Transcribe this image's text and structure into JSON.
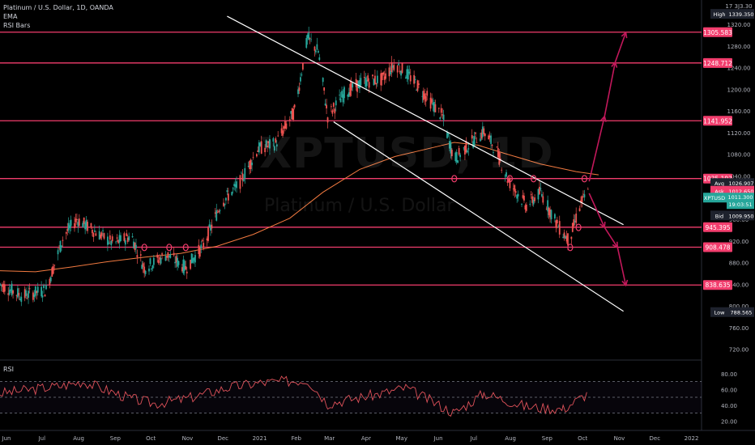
{
  "header": {
    "title": "Platinum / U.S. Dollar, 1D, OANDA",
    "indicators": [
      "EMA",
      "RSI Bars"
    ]
  },
  "watermark": {
    "symbol": "XPTUSD, 1D",
    "name": "Platinum / U.S. Dollar"
  },
  "rsi_pane": {
    "title": "RSI",
    "ticks": [
      "80.00",
      "60.00",
      "40.00",
      "20.00"
    ],
    "levels": [
      70,
      50,
      30
    ]
  },
  "price_axis": {
    "ticks": [
      "1360.00",
      "1320.00",
      "1280.00",
      "1240.00",
      "1200.00",
      "1160.00",
      "1120.00",
      "1080.00",
      "1040.00",
      "1000.00",
      "960.00",
      "920.00",
      "880.00",
      "840.00",
      "800.00",
      "760.00",
      "720.00"
    ],
    "top_label": "17 3J3.30"
  },
  "badges": {
    "high": {
      "label": "High",
      "value": "1339.350"
    },
    "low": {
      "label": "Low",
      "value": "788.565"
    },
    "avg": {
      "label": "Avg",
      "value": "1026.907"
    },
    "ask": {
      "label": "Ask",
      "value": "1012.650"
    },
    "symbol": {
      "label": "XPTUSD",
      "value": "1011.300",
      "countdown": "19:03:51"
    },
    "bid": {
      "label": "Bid",
      "value": "1009.950"
    }
  },
  "time_axis": [
    "Jun",
    "Jul",
    "Aug",
    "Sep",
    "Oct",
    "Nov",
    "Dec",
    "2021",
    "Feb",
    "Mar",
    "Apr",
    "May",
    "Jun",
    "Jul",
    "Aug",
    "Sep",
    "Oct",
    "Nov",
    "Dec",
    "2022"
  ],
  "colors": {
    "background": "#000000",
    "level": "#f23d6d",
    "up": "#26a69a",
    "down": "#ef5350",
    "ema": "#f27a40",
    "channel": "#ffffff",
    "arrow": "#c2185b",
    "rsi": "#e0525a"
  },
  "chart_data": {
    "type": "candlestick",
    "symbol": "XPTUSD",
    "timeframe": "1D",
    "x_range": [
      "2020-06-01",
      "2022-01-15"
    ],
    "y_range": [
      700,
      1365
    ],
    "horizontal_levels": [
      1305.583,
      1248.712,
      1141.952,
      1035.193,
      945.395,
      908.478,
      838.635
    ],
    "channel_lines": [
      {
        "start": [
          "2020-12-10",
          1335
        ],
        "end": [
          "2021-11-10",
          950
        ]
      },
      {
        "start": [
          "2021-03-10",
          1140
        ],
        "end": [
          "2021-11-10",
          790
        ]
      }
    ],
    "ema": [
      [
        "2020-06-01",
        865
      ],
      [
        "2020-07-01",
        863
      ],
      [
        "2020-08-01",
        872
      ],
      [
        "2020-09-01",
        882
      ],
      [
        "2020-10-01",
        890
      ],
      [
        "2020-11-01",
        897
      ],
      [
        "2020-12-01",
        910
      ],
      [
        "2021-01-01",
        932
      ],
      [
        "2021-02-01",
        962
      ],
      [
        "2021-03-01",
        1010
      ],
      [
        "2021-04-01",
        1052
      ],
      [
        "2021-05-01",
        1076
      ],
      [
        "2021-06-01",
        1092
      ],
      [
        "2021-06-20",
        1102
      ],
      [
        "2021-07-10",
        1097
      ],
      [
        "2021-08-01",
        1082
      ],
      [
        "2021-09-01",
        1062
      ],
      [
        "2021-10-01",
        1048
      ],
      [
        "2021-10-20",
        1042
      ]
    ],
    "price_path": [
      [
        "2020-06-01",
        840
      ],
      [
        "2020-06-20",
        818
      ],
      [
        "2020-07-10",
        830
      ],
      [
        "2020-07-25",
        930
      ],
      [
        "2020-08-05",
        960
      ],
      [
        "2020-08-20",
        938
      ],
      [
        "2020-09-05",
        915
      ],
      [
        "2020-09-20",
        930
      ],
      [
        "2020-10-01",
        870
      ],
      [
        "2020-10-20",
        895
      ],
      [
        "2020-11-05",
        870
      ],
      [
        "2020-11-20",
        912
      ],
      [
        "2020-12-05",
        990
      ],
      [
        "2020-12-20",
        1025
      ],
      [
        "2021-01-05",
        1090
      ],
      [
        "2021-01-20",
        1100
      ],
      [
        "2021-02-05",
        1160
      ],
      [
        "2021-02-16",
        1295
      ],
      [
        "2021-02-25",
        1270
      ],
      [
        "2021-03-05",
        1150
      ],
      [
        "2021-03-20",
        1195
      ],
      [
        "2021-04-05",
        1215
      ],
      [
        "2021-04-20",
        1218
      ],
      [
        "2021-05-01",
        1248
      ],
      [
        "2021-05-15",
        1220
      ],
      [
        "2021-05-28",
        1185
      ],
      [
        "2021-06-10",
        1150
      ],
      [
        "2021-06-20",
        1070
      ],
      [
        "2021-07-01",
        1095
      ],
      [
        "2021-07-15",
        1122
      ],
      [
        "2021-07-25",
        1090
      ],
      [
        "2021-08-05",
        1030
      ],
      [
        "2021-08-20",
        985
      ],
      [
        "2021-09-01",
        1010
      ],
      [
        "2021-09-15",
        950
      ],
      [
        "2021-09-25",
        920
      ],
      [
        "2021-10-05",
        990
      ],
      [
        "2021-10-12",
        1012
      ]
    ],
    "projection_arrows": [
      {
        "from": [
          "2021-10-12",
          1030
        ],
        "to": [
          "2021-10-25",
          1150
        ]
      },
      {
        "from": [
          "2021-10-25",
          1150
        ],
        "to": [
          "2021-11-03",
          1250
        ]
      },
      {
        "from": [
          "2021-11-03",
          1250
        ],
        "to": [
          "2021-11-12",
          1305
        ]
      },
      {
        "from": [
          "2021-10-12",
          1008
        ],
        "to": [
          "2021-10-25",
          945
        ]
      },
      {
        "from": [
          "2021-10-25",
          945
        ],
        "to": [
          "2021-11-05",
          908
        ]
      },
      {
        "from": [
          "2021-11-05",
          908
        ],
        "to": [
          "2021-11-12",
          838
        ]
      }
    ],
    "markers": [
      [
        "2020-10-01",
        908
      ],
      [
        "2020-10-22",
        908
      ],
      [
        "2020-11-05",
        908
      ],
      [
        "2021-06-20",
        1035
      ],
      [
        "2021-08-06",
        1035
      ],
      [
        "2021-08-26",
        1035
      ],
      [
        "2021-09-26",
        908
      ],
      [
        "2021-10-03",
        945
      ],
      [
        "2021-10-08",
        1035
      ]
    ],
    "rsi_path": [
      [
        "2020-06-01",
        55
      ],
      [
        "2020-07-25",
        65
      ],
      [
        "2020-08-10",
        70
      ],
      [
        "2020-09-20",
        48
      ],
      [
        "2020-10-10",
        42
      ],
      [
        "2020-11-05",
        48
      ],
      [
        "2020-12-10",
        62
      ],
      [
        "2021-01-05",
        68
      ],
      [
        "2021-02-16",
        72
      ],
      [
        "2021-03-05",
        42
      ],
      [
        "2021-04-20",
        55
      ],
      [
        "2021-05-10",
        62
      ],
      [
        "2021-06-20",
        30
      ],
      [
        "2021-07-15",
        55
      ],
      [
        "2021-08-20",
        38
      ],
      [
        "2021-09-20",
        35
      ],
      [
        "2021-10-12",
        56
      ]
    ]
  }
}
